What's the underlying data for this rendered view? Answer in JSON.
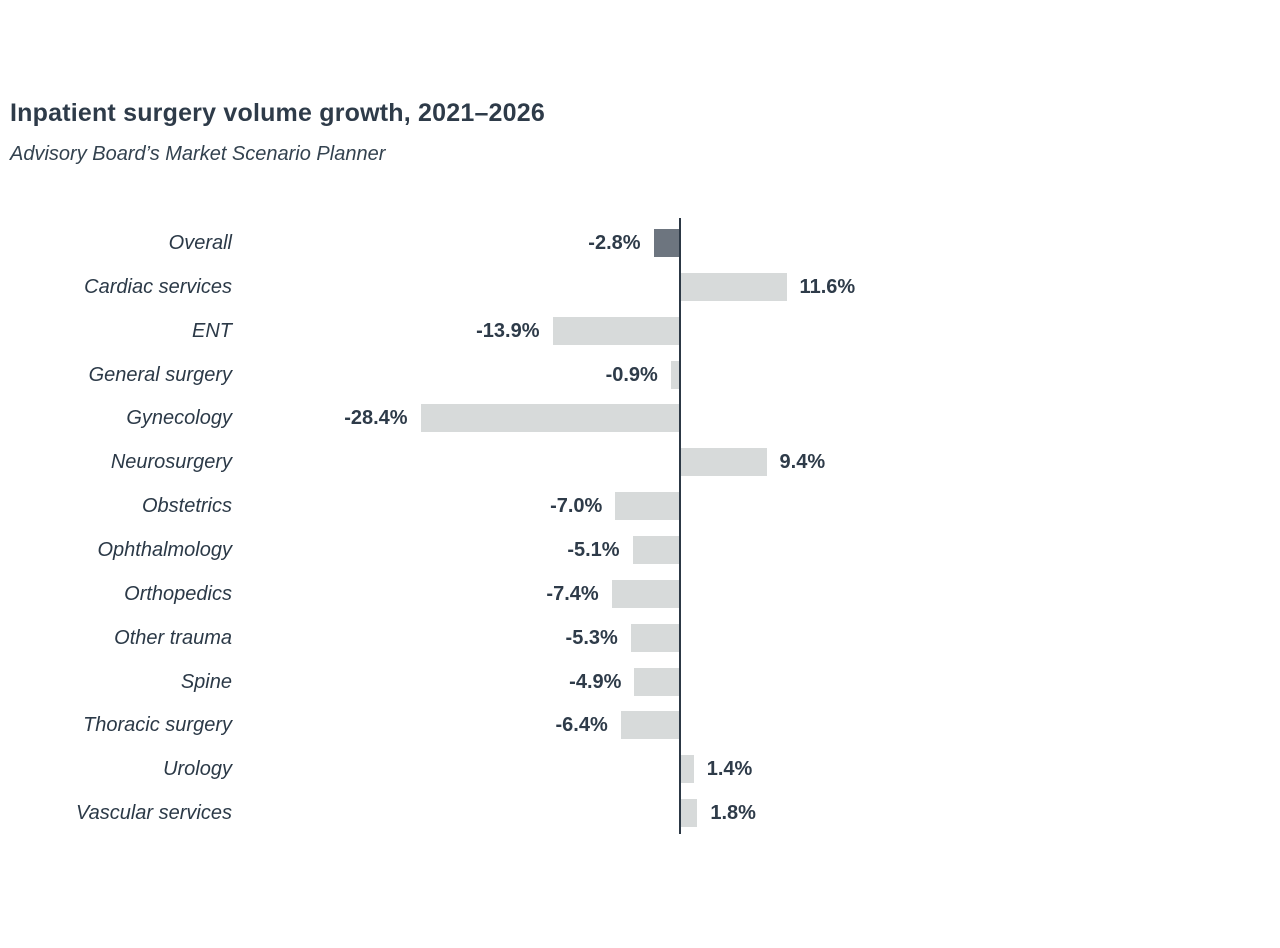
{
  "header": {
    "title": "Inpatient surgery volume growth, 2021–2026",
    "subtitle": "Advisory Board’s Market Scenario Planner"
  },
  "chart_data": {
    "type": "bar",
    "orientation": "horizontal",
    "title": "Inpatient surgery volume growth, 2021–2026",
    "subtitle": "Advisory Board’s Market Scenario Planner",
    "categories": [
      "Overall",
      "Cardiac services",
      "ENT",
      "General surgery",
      "Gynecology",
      "Neurosurgery",
      "Obstetrics",
      "Ophthalmology",
      "Orthopedics",
      "Other trauma",
      "Spine",
      "Thoracic surgery",
      "Urology",
      "Vascular services"
    ],
    "values": [
      -2.8,
      11.6,
      -13.9,
      -0.9,
      -28.4,
      9.4,
      -7.0,
      -5.1,
      -7.4,
      -5.3,
      -4.9,
      -6.4,
      1.4,
      1.8
    ],
    "value_labels": [
      "-2.8%",
      "11.6%",
      "-13.9%",
      "-0.9%",
      "-28.4%",
      "9.4%",
      "-7.0%",
      "-5.1%",
      "-7.4%",
      "-5.3%",
      "-4.9%",
      "-6.4%",
      "1.4%",
      "1.8%"
    ],
    "unit": "%",
    "baseline": 0,
    "xlim": [
      -30,
      15
    ],
    "grid": false,
    "legend": "none",
    "highlight_category": "Overall",
    "colors": {
      "bar_default": "#d7dada",
      "bar_highlight": "#6d757f",
      "axis": "#2c3845",
      "text": "#2e3b49",
      "background": "#ffffff"
    }
  }
}
